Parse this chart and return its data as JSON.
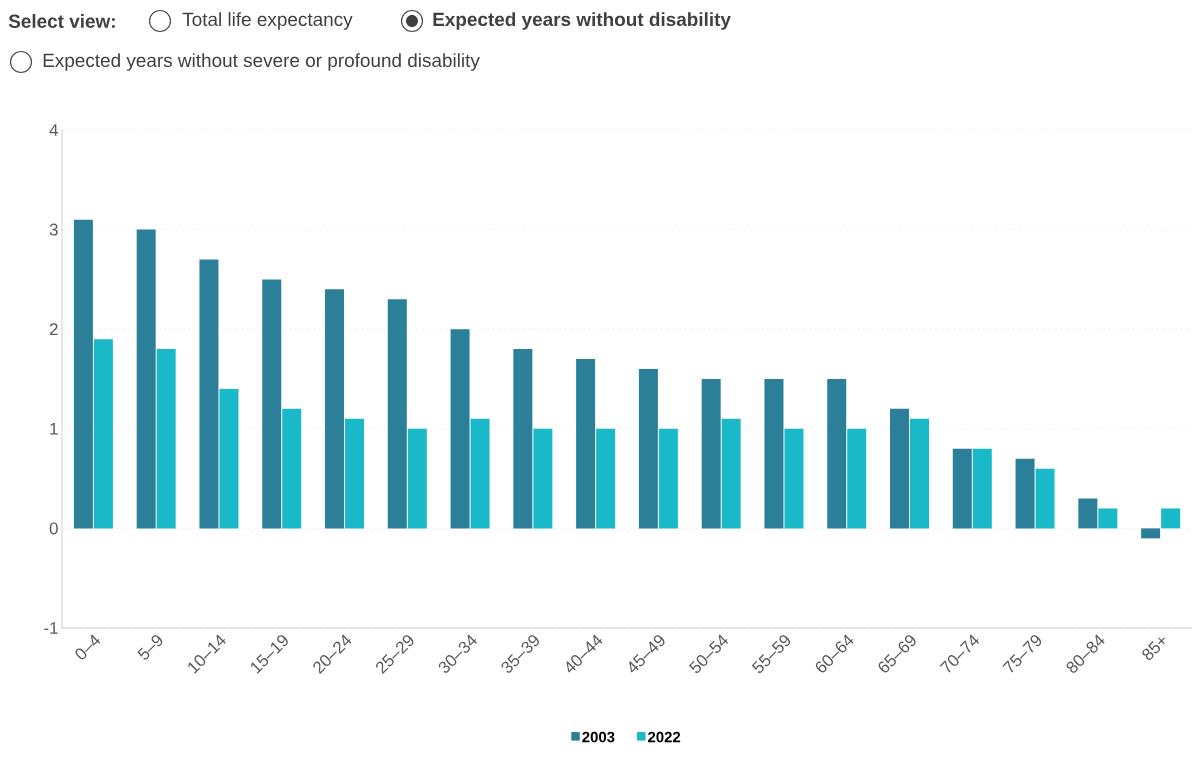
{
  "chart_data": {
    "type": "bar",
    "annotations": [
      "Select view:",
      "Total life expectancy",
      "Expected years without disability",
      "Expected years without severe or profound disability"
    ],
    "categories": [
      "0–4",
      "5–9",
      "10–14",
      "15–19",
      "20–24",
      "25–29",
      "30–34",
      "35–39",
      "40–44",
      "45–49",
      "50–54",
      "55–59",
      "60–64",
      "65–69",
      "70–74",
      "75–79",
      "80–84",
      "85+"
    ],
    "series": [
      {
        "name": "2003",
        "color": "#2b7f98",
        "values": [
          3.1,
          3.0,
          2.7,
          2.5,
          2.4,
          2.3,
          2.0,
          1.8,
          1.7,
          1.6,
          1.5,
          1.5,
          1.5,
          1.2,
          0.8,
          0.7,
          0.3,
          -0.1
        ]
      },
      {
        "name": "2022",
        "color": "#1ab9c9",
        "values": [
          1.9,
          1.8,
          1.4,
          1.2,
          1.1,
          1.0,
          1.1,
          1.0,
          1.0,
          1.0,
          1.1,
          1.0,
          1.0,
          1.1,
          0.8,
          0.6,
          0.2,
          0.2
        ]
      }
    ],
    "ylim": [
      -1,
      4
    ],
    "yticks": [
      -1,
      0,
      1,
      2,
      3,
      4
    ],
    "grid": "y",
    "legend": "bottom"
  }
}
